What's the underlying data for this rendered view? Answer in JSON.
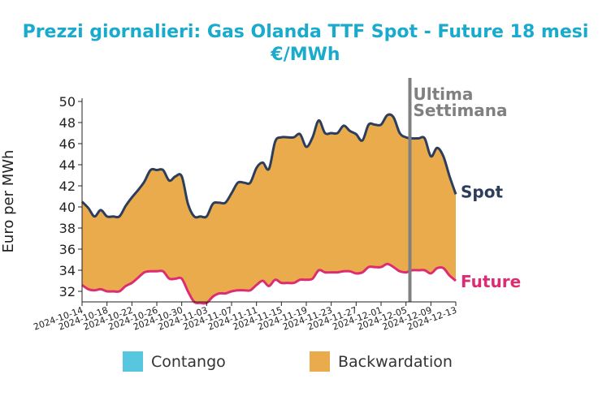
{
  "chart_data": {
    "type": "area",
    "title": "Prezzi giornalieri: Gas Olanda TTF Spot - Future 18 mesi",
    "subtitle": "€/MWh",
    "xlabel": "",
    "ylabel": "Euro per MWh",
    "ylim": [
      31,
      50
    ],
    "yticks": [
      32,
      34,
      36,
      38,
      40,
      42,
      44,
      46,
      48,
      50
    ],
    "xlim": [
      "2024-10-14",
      "2024-12-13"
    ],
    "xticks": [
      "2024-10-14",
      "2024-10-18",
      "2024-10-22",
      "2024-10-26",
      "2024-10-30",
      "2024-11-03",
      "2024-11-07",
      "2024-11-11",
      "2024-11-15",
      "2024-11-19",
      "2024-11-23",
      "2024-11-27",
      "2024-12-01",
      "2024-12-05",
      "2024-12-09",
      "2024-12-13"
    ],
    "grid": false,
    "series": [
      {
        "name": "Spot",
        "x": [
          "2024-10-14",
          "2024-10-15",
          "2024-10-16",
          "2024-10-17",
          "2024-10-18",
          "2024-10-19",
          "2024-10-20",
          "2024-10-21",
          "2024-10-22",
          "2024-10-23",
          "2024-10-24",
          "2024-10-25",
          "2024-10-26",
          "2024-10-27",
          "2024-10-28",
          "2024-10-29",
          "2024-10-30",
          "2024-10-31",
          "2024-11-01",
          "2024-11-02",
          "2024-11-03",
          "2024-11-04",
          "2024-11-05",
          "2024-11-06",
          "2024-11-07",
          "2024-11-08",
          "2024-11-09",
          "2024-11-10",
          "2024-11-11",
          "2024-11-12",
          "2024-11-13",
          "2024-11-14",
          "2024-11-15",
          "2024-11-16",
          "2024-11-17",
          "2024-11-18",
          "2024-11-19",
          "2024-11-20",
          "2024-11-21",
          "2024-11-22",
          "2024-11-23",
          "2024-11-24",
          "2024-11-25",
          "2024-11-26",
          "2024-11-27",
          "2024-11-28",
          "2024-11-29",
          "2024-11-30",
          "2024-12-01",
          "2024-12-02",
          "2024-12-03",
          "2024-12-04",
          "2024-12-05",
          "2024-12-06",
          "2024-12-07",
          "2024-12-08",
          "2024-12-09",
          "2024-12-10",
          "2024-12-11",
          "2024-12-12",
          "2024-12-13"
        ],
        "values": [
          40.5,
          39.9,
          39.1,
          39.7,
          39.1,
          39.1,
          39.1,
          40.1,
          40.9,
          41.6,
          42.4,
          43.5,
          43.5,
          43.5,
          42.5,
          42.9,
          42.9,
          40.3,
          39.1,
          39.1,
          39.1,
          40.3,
          40.4,
          40.4,
          41.3,
          42.3,
          42.3,
          42.3,
          43.7,
          44.2,
          43.6,
          46.2,
          46.6,
          46.6,
          46.6,
          46.9,
          45.7,
          46.6,
          48.2,
          47.0,
          47.0,
          47.0,
          47.7,
          47.2,
          46.9,
          46.3,
          47.8,
          47.8,
          47.8,
          48.7,
          48.5,
          47.0,
          46.6,
          46.5,
          46.5,
          46.5,
          44.8,
          45.6,
          44.8,
          42.9,
          41.2
        ]
      },
      {
        "name": "Future",
        "x": [
          "2024-10-14",
          "2024-10-15",
          "2024-10-16",
          "2024-10-17",
          "2024-10-18",
          "2024-10-19",
          "2024-10-20",
          "2024-10-21",
          "2024-10-22",
          "2024-10-23",
          "2024-10-24",
          "2024-10-25",
          "2024-10-26",
          "2024-10-27",
          "2024-10-28",
          "2024-10-29",
          "2024-10-30",
          "2024-10-31",
          "2024-11-01",
          "2024-11-02",
          "2024-11-03",
          "2024-11-04",
          "2024-11-05",
          "2024-11-06",
          "2024-11-07",
          "2024-11-08",
          "2024-11-09",
          "2024-11-10",
          "2024-11-11",
          "2024-11-12",
          "2024-11-13",
          "2024-11-14",
          "2024-11-15",
          "2024-11-16",
          "2024-11-17",
          "2024-11-18",
          "2024-11-19",
          "2024-11-20",
          "2024-11-21",
          "2024-11-22",
          "2024-11-23",
          "2024-11-24",
          "2024-11-25",
          "2024-11-26",
          "2024-11-27",
          "2024-11-28",
          "2024-11-29",
          "2024-11-30",
          "2024-12-01",
          "2024-12-02",
          "2024-12-03",
          "2024-12-04",
          "2024-12-05",
          "2024-12-06",
          "2024-12-07",
          "2024-12-08",
          "2024-12-09",
          "2024-12-10",
          "2024-12-11",
          "2024-12-12",
          "2024-12-13"
        ],
        "values": [
          32.6,
          32.2,
          32.1,
          32.2,
          32.0,
          32.0,
          32.0,
          32.5,
          32.8,
          33.3,
          33.8,
          33.9,
          33.9,
          33.9,
          33.2,
          33.2,
          33.2,
          32.0,
          31.0,
          30.9,
          30.9,
          31.5,
          31.8,
          31.8,
          32.0,
          32.1,
          32.1,
          32.1,
          32.6,
          33.0,
          32.5,
          33.1,
          32.8,
          32.8,
          32.8,
          33.1,
          33.1,
          33.2,
          34.0,
          33.8,
          33.8,
          33.8,
          33.9,
          33.9,
          33.7,
          33.8,
          34.3,
          34.3,
          34.3,
          34.6,
          34.3,
          33.9,
          33.8,
          34.0,
          34.0,
          34.0,
          33.7,
          34.2,
          34.2,
          33.5,
          33.0
        ]
      }
    ],
    "annotations": [
      {
        "text": "Ultima",
        "x": "2024-12-06"
      },
      {
        "text": "Settimana",
        "x": "2024-12-06"
      }
    ],
    "vline_date": "2024-12-06",
    "series_labels": [
      "Spot",
      "Future"
    ],
    "legend": {
      "placement": "bottom",
      "items": [
        {
          "label": "Contango",
          "color": "#57c7e0"
        },
        {
          "label": "Backwardation",
          "color": "#eaab4d"
        }
      ]
    },
    "colors": {
      "title": "#1aabcc",
      "spot": "#2d3e5c",
      "future": "#dd2c72",
      "fill": "#eaab4d",
      "vline": "#808080"
    }
  }
}
